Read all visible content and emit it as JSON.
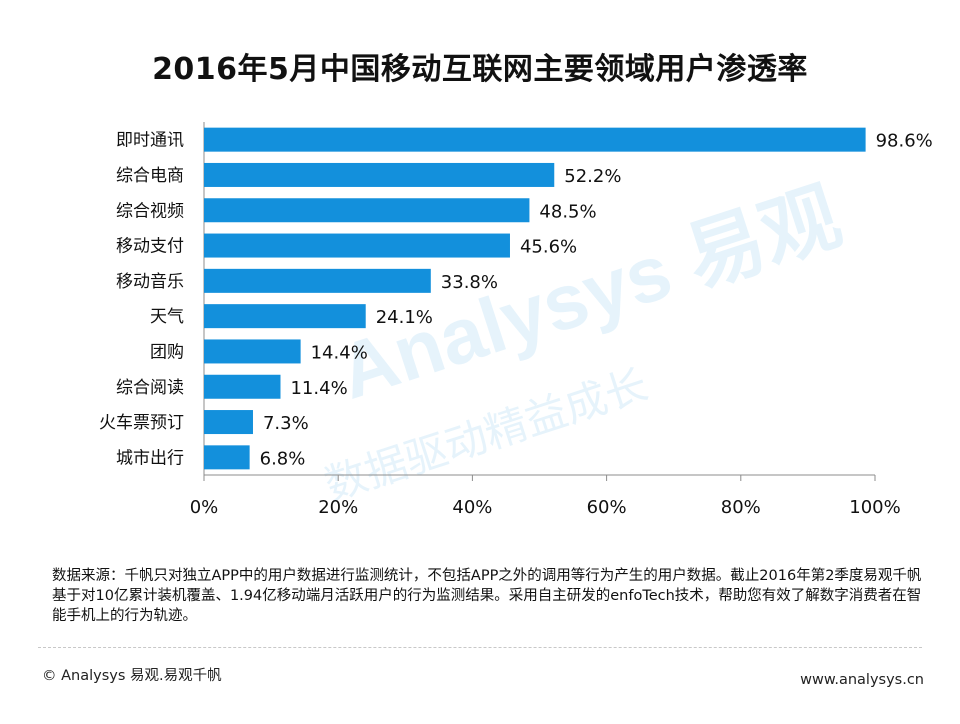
{
  "title": "2016年5月中国移动互联网主要领域用户渗透率",
  "colors": {
    "bar": "#1390dc",
    "axis": "#8c8c8c",
    "text": "#111111"
  },
  "chart_data": {
    "type": "bar",
    "orientation": "horizontal",
    "categories": [
      "即时通讯",
      "综合电商",
      "综合视频",
      "移动支付",
      "移动音乐",
      "天气",
      "团购",
      "综合阅读",
      "火车票预订",
      "城市出行"
    ],
    "values": [
      98.6,
      52.2,
      48.5,
      45.6,
      33.8,
      24.1,
      14.4,
      11.4,
      7.3,
      6.8
    ],
    "value_labels": [
      "98.6%",
      "52.2%",
      "48.5%",
      "45.6%",
      "33.8%",
      "24.1%",
      "14.4%",
      "11.4%",
      "7.3%",
      "6.8%"
    ],
    "xlim": [
      0,
      100
    ],
    "xticks": [
      0,
      20,
      40,
      60,
      80,
      100
    ],
    "xtick_labels": [
      "0%",
      "20%",
      "40%",
      "60%",
      "80%",
      "100%"
    ],
    "grid": false
  },
  "source_text": "数据来源：千帆只对独立APP中的用户数据进行监测统计，不包括APP之外的调用等行为产生的用户数据。截止2016年第2季度易观千帆基于对10亿累计装机覆盖、1.94亿移动端月活跃用户的行为监测结果。采用自主研发的enfoTech技术，帮助您有效了解数字消费者在智能手机上的行为轨迹。",
  "footer": {
    "left": "© Analysys 易观.易观千帆",
    "right": "www.analysys.cn"
  },
  "watermark": {
    "brand": "Analysys 易观",
    "slogan": "数据驱动精益成长"
  }
}
